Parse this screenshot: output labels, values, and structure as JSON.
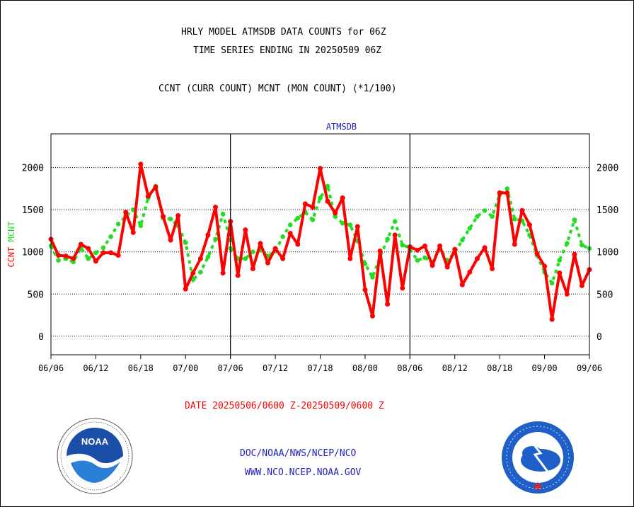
{
  "header": {
    "title_line1": "HRLY MODEL ATMSDB DATA COUNTS for 06Z",
    "title_line2": "TIME SERIES ENDING IN 20250509 06Z",
    "subtitle": "CCNT (CURR COUNT) MCNT (MON COUNT) (*1/100)"
  },
  "footer": {
    "date_range": "DATE 20250506/0600 Z-20250509/0600 Z",
    "org_line": "DOC/NOAA/NWS/NCEP/NCO",
    "url_line": "WWW.NCO.NCEP.NOAA.GOV",
    "noaa_logo_text": "NOAA",
    "nws_logo_text": "NATIONAL WEATHER SERVICE"
  },
  "colors": {
    "ccnt": "#ff0000",
    "mcnt": "#22dd22",
    "footer_blue": "#2222bb"
  },
  "chart_data": {
    "type": "line",
    "title": "ATMSDB",
    "ylabel_left": [
      "CCNT",
      "MCNT"
    ],
    "ylim": [
      -220,
      2400
    ],
    "yticks": [
      0,
      500,
      1000,
      1500,
      2000
    ],
    "grid": "horizontal dotted",
    "panels": [
      {
        "x_ticks": [
          "06/06",
          "06/12",
          "06/18",
          "07/00",
          "07/06"
        ],
        "series": [
          {
            "name": "CCNT",
            "values": [
              1150,
              960,
              950,
              920,
              1090,
              1040,
              890,
              990,
              990,
              960,
              1470,
              1230,
              2040,
              1660,
              1770,
              1420,
              1140,
              1430,
              560,
              750,
              920,
              1200,
              1530,
              750,
              1360
            ]
          },
          {
            "name": "MCNT",
            "values": [
              1070,
              900,
              920,
              880,
              1050,
              920,
              990,
              1050,
              1180,
              1330,
              1420,
              1500,
              1310,
              1640,
              1780,
              1400,
              1390,
              1310,
              1110,
              670,
              760,
              940,
              1150,
              1450,
              1140
            ]
          }
        ]
      },
      {
        "x_ticks": [
          "07/06",
          "07/12",
          "07/18",
          "08/00",
          "08/06"
        ],
        "series": [
          {
            "name": "CCNT",
            "values": [
              1360,
              720,
              1260,
              800,
              1100,
              870,
              1040,
              920,
              1220,
              1090,
              1570,
              1530,
              1990,
              1600,
              1460,
              1640,
              920,
              1300,
              550,
              240,
              1010,
              380,
              1200,
              570,
              1060
            ]
          },
          {
            "name": "MCNT",
            "values": [
              1040,
              920,
              920,
              1000,
              1020,
              950,
              1010,
              1180,
              1320,
              1400,
              1470,
              1380,
              1640,
              1780,
              1420,
              1340,
              1320,
              1130,
              860,
              700,
              940,
              1150,
              1360,
              1080,
              1050
            ]
          }
        ]
      },
      {
        "x_ticks": [
          "08/06",
          "08/12",
          "08/18",
          "09/00",
          "09/06"
        ],
        "series": [
          {
            "name": "CCNT",
            "values": [
              1060,
              1020,
              1070,
              840,
              1070,
              820,
              1030,
              610,
              760,
              920,
              1050,
              800,
              1700,
              1700,
              1090,
              1490,
              1320,
              980,
              830,
              200,
              750,
              500,
              970,
              600,
              790
            ]
          },
          {
            "name": "MCNT",
            "values": [
              1030,
              900,
              930,
              880,
              1040,
              900,
              990,
              1140,
              1280,
              1420,
              1490,
              1420,
              1680,
              1750,
              1390,
              1370,
              1200,
              960,
              760,
              630,
              900,
              1100,
              1380,
              1080,
              1040
            ]
          }
        ]
      }
    ]
  }
}
